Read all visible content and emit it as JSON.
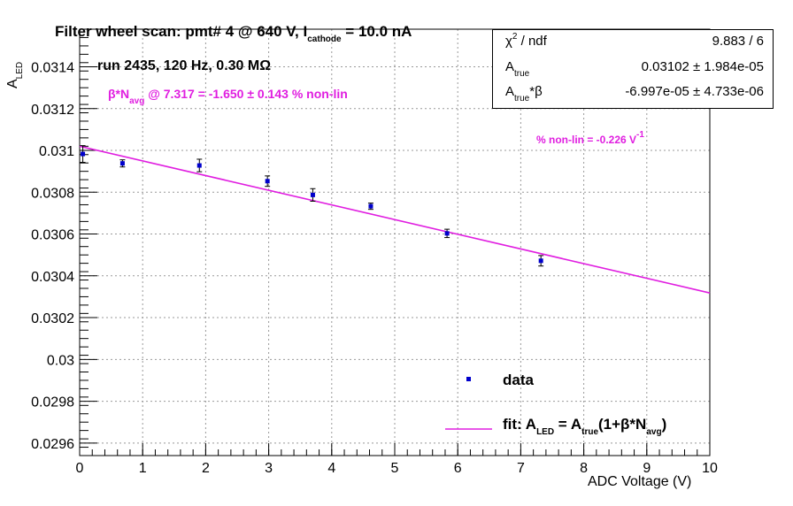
{
  "chart_data": {
    "type": "scatter",
    "title_prefix": "Filter wheel scan: pmt#   4 @   640 V, I",
    "title_sub": "cathode",
    "title_suffix": " = 10.0 nA",
    "run_label": "run 2435, 120 Hz, 0.30 MΩ",
    "beta_label": {
      "pre": "β*N",
      "sub": "avg",
      "post": " @ 7.317 = -1.650 ± 0.143 % non-lin"
    },
    "nonlin_label": {
      "text": "% non-lin = -0.226 V",
      "sup": "-1"
    },
    "xlabel": "ADC Voltage (V)",
    "ylabel": {
      "main": "A",
      "sub": "LED"
    },
    "xlim": [
      0,
      10
    ],
    "ylim": [
      0.02954,
      0.03158
    ],
    "x_ticks": [
      0,
      1,
      2,
      3,
      4,
      5,
      6,
      7,
      8,
      9,
      10
    ],
    "x_tick_labels": [
      "0",
      "1",
      "2",
      "3",
      "4",
      "5",
      "6",
      "7",
      "8",
      "9",
      "10"
    ],
    "y_ticks": [
      0.0296,
      0.0298,
      0.03,
      0.0302,
      0.0304,
      0.0306,
      0.0308,
      0.031,
      0.0312,
      0.0314
    ],
    "y_tick_labels": [
      "0.0296",
      "0.0298",
      "0.03",
      "0.0302",
      "0.0304",
      "0.0306",
      "0.0308",
      "0.031",
      "0.0312",
      "0.0314"
    ],
    "grid": true,
    "series": [
      {
        "name": "data",
        "color": "#0000cc",
        "x": [
          0.05,
          0.68,
          1.9,
          2.98,
          3.7,
          4.62,
          5.83,
          7.32
        ],
        "y": [
          0.030983,
          0.030938,
          0.030928,
          0.030853,
          0.030787,
          0.030733,
          0.030603,
          0.030472
        ],
        "yerr": [
          4e-05,
          1.7e-05,
          3e-05,
          2.5e-05,
          3e-05,
          1.5e-05,
          2e-05,
          2.5e-05
        ]
      }
    ],
    "fit": {
      "color": "#e01ee0",
      "x": [
        0,
        10
      ],
      "y": [
        0.03102,
        0.030318
      ]
    },
    "legend": {
      "data_label": "data",
      "fit_label": {
        "pre": "fit: A",
        "sub1": "LED",
        "mid1": " = A",
        "sub2": "true",
        "mid2": "(1+β*N",
        "sub3": "avg",
        "post": ")"
      }
    },
    "stats_box": [
      {
        "key": "χ",
        "key_sup": "2",
        "key_rest": " / ndf",
        "key_sub": "",
        "value": "9.883 / 6"
      },
      {
        "key": "A",
        "key_sup": "",
        "key_rest": "",
        "key_sub": "true",
        "value": "0.03102 ± 1.984e-05"
      },
      {
        "key": "A",
        "key_sup": "",
        "key_rest": "*β",
        "key_sub": "true",
        "value": "-6.997e-05 ± 4.733e-06"
      }
    ]
  }
}
